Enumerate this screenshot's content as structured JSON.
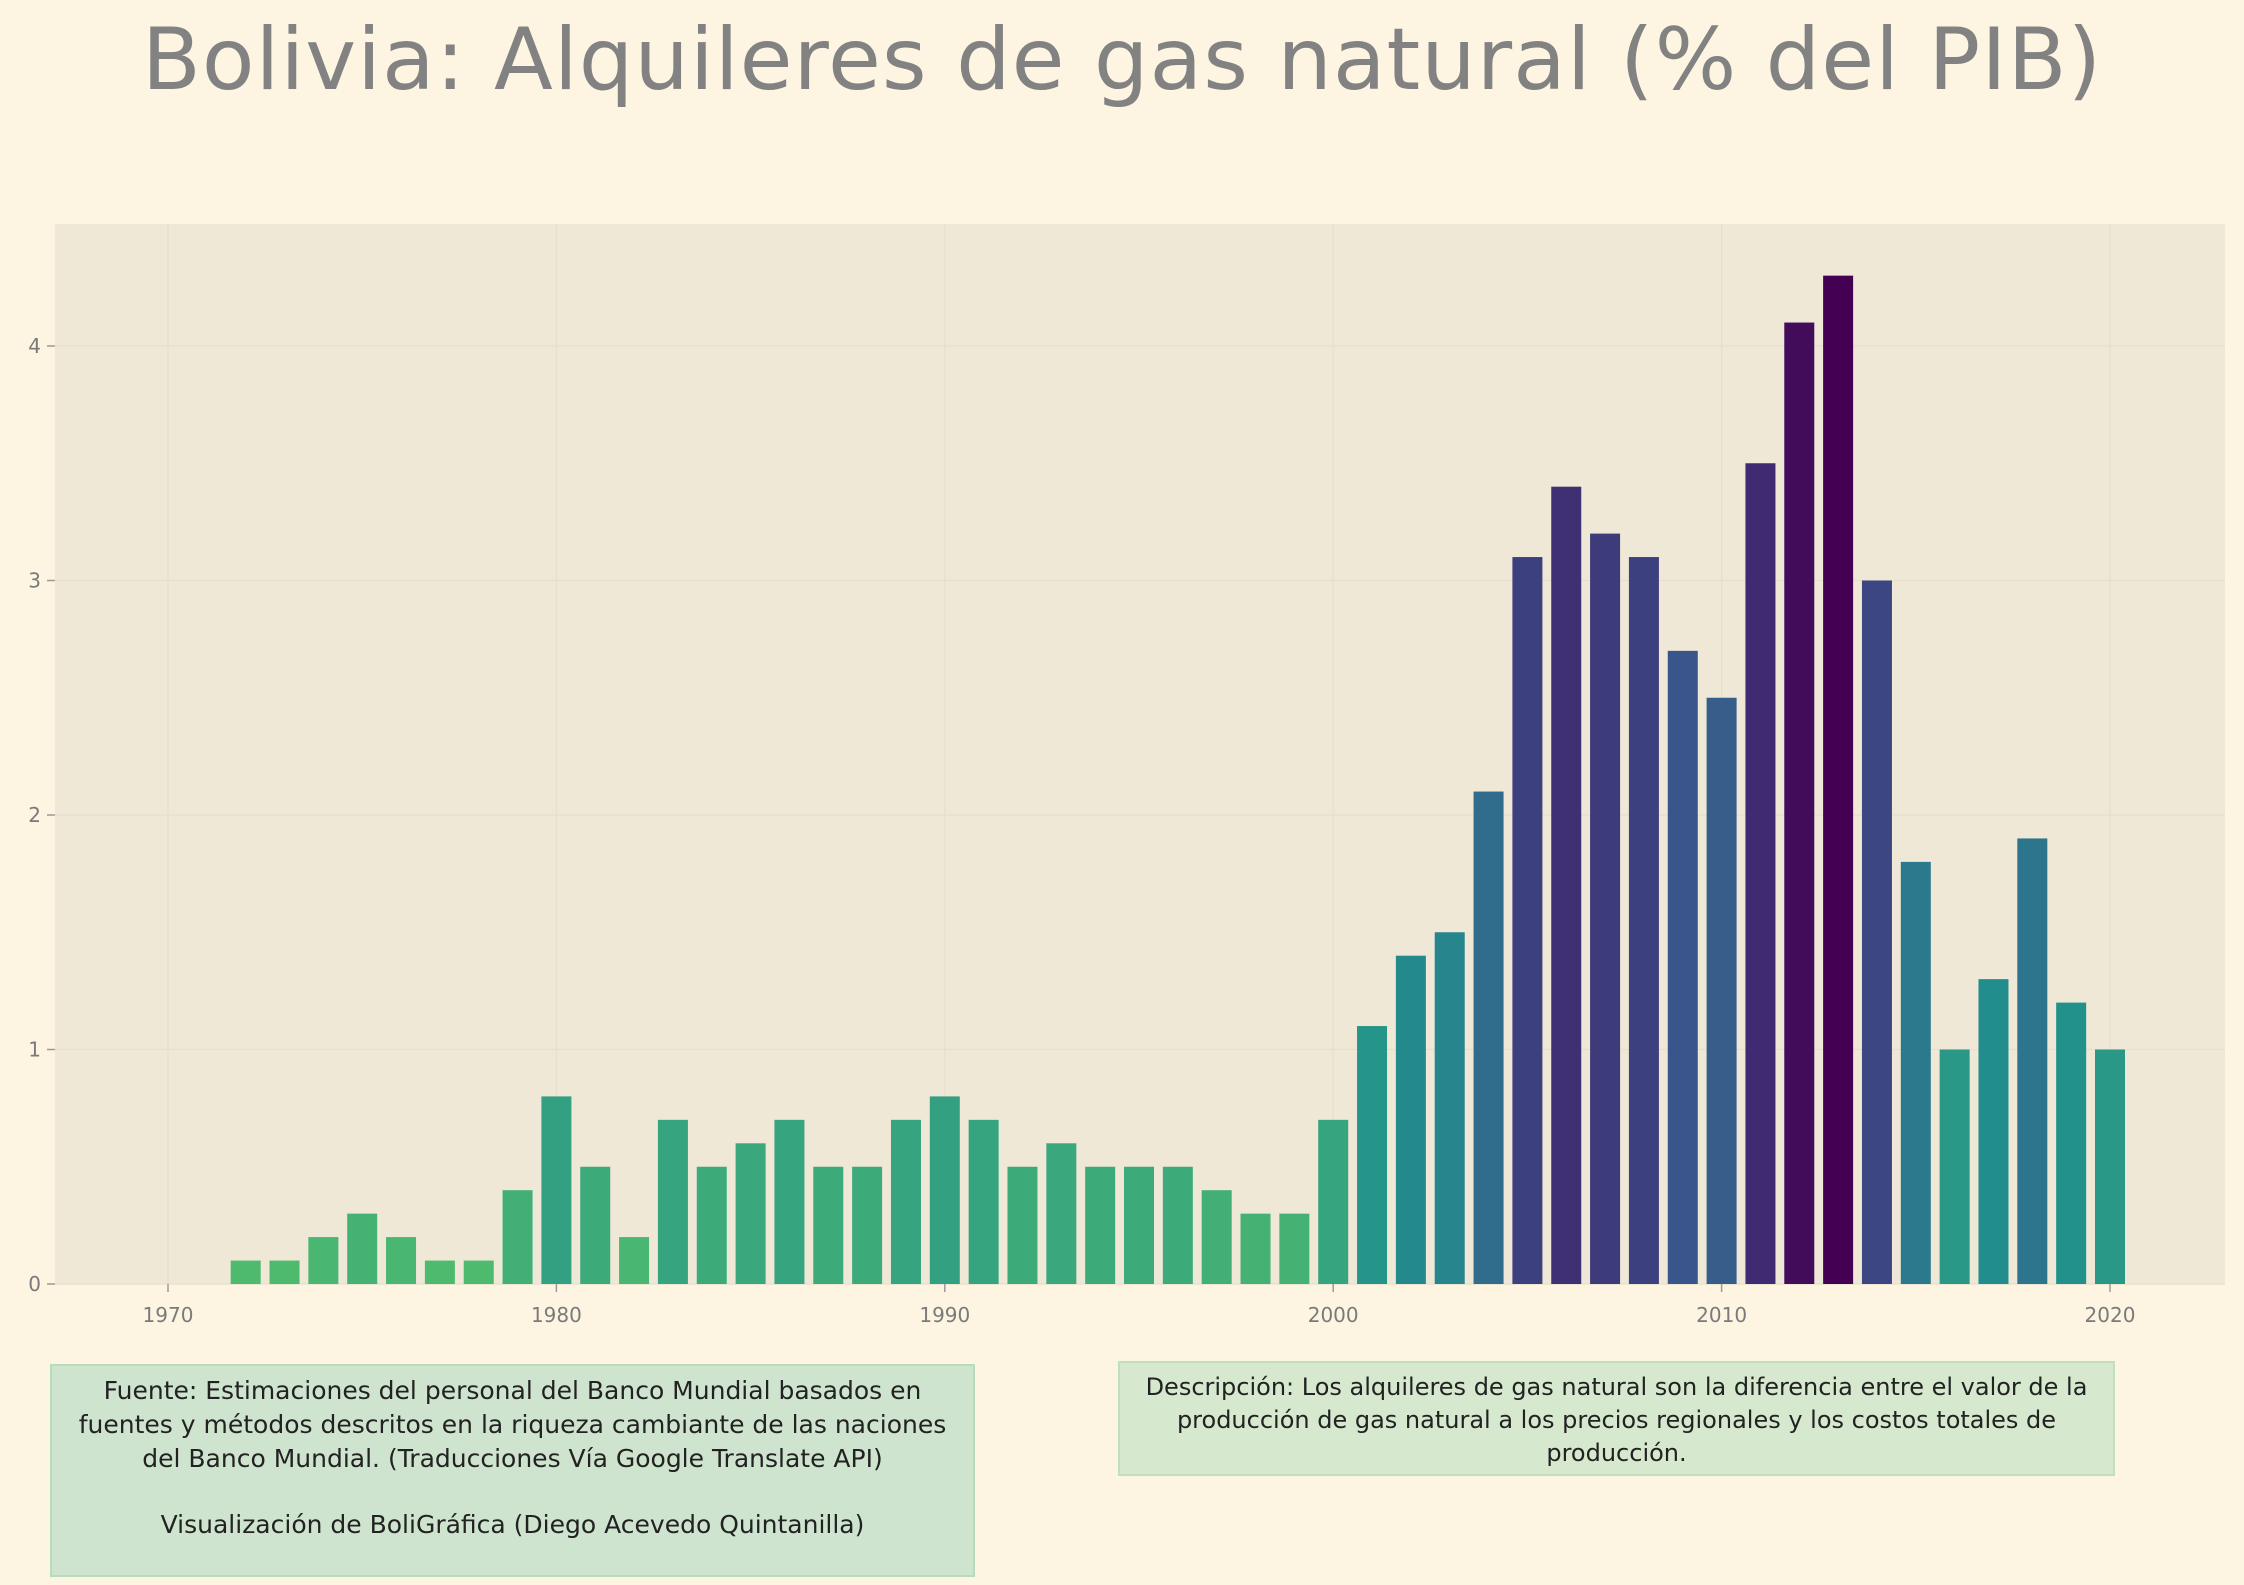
{
  "title": "Bolivia:  Alquileres de gas natural (% del PIB)",
  "source_text": "Fuente: Estimaciones del personal del Banco Mundial basados en fuentes y métodos descritos en la riqueza cambiante de las naciones del Banco Mundial. (Traducciones Vía Google Translate API)",
  "credit_text": "Visualización de BoliGráfica (Diego Acevedo Quintanilla)",
  "description_text": "Descripción: Los alquileres de gas natural son la diferencia entre el valor de la producción de gas natural a los precios regionales y los costos totales de producción.",
  "chart_data": {
    "type": "bar",
    "title": "Bolivia:  Alquileres de gas natural (% del PIB)",
    "xlabel": "",
    "ylabel": "",
    "x": [
      1970,
      1971,
      1972,
      1973,
      1974,
      1975,
      1976,
      1977,
      1978,
      1979,
      1980,
      1981,
      1982,
      1983,
      1984,
      1985,
      1986,
      1987,
      1988,
      1989,
      1990,
      1991,
      1992,
      1993,
      1994,
      1995,
      1996,
      1997,
      1998,
      1999,
      2000,
      2001,
      2002,
      2003,
      2004,
      2005,
      2006,
      2007,
      2008,
      2009,
      2010,
      2011,
      2012,
      2013,
      2014,
      2015,
      2016,
      2017,
      2018,
      2019,
      2020
    ],
    "values": [
      0,
      0,
      0.1,
      0.1,
      0.2,
      0.3,
      0.2,
      0.1,
      0.1,
      0.4,
      0.8,
      0.5,
      0.2,
      0.7,
      0.5,
      0.6,
      0.7,
      0.5,
      0.5,
      0.7,
      0.8,
      0.7,
      0.5,
      0.6,
      0.5,
      0.5,
      0.5,
      0.4,
      0.3,
      0.3,
      0.7,
      1.1,
      1.4,
      1.5,
      2.1,
      3.1,
      3.4,
      3.2,
      3.1,
      2.7,
      2.5,
      3.5,
      4.1,
      4.3,
      3.0,
      1.8,
      1.0,
      1.3,
      1.9,
      1.2,
      1.0
    ],
    "xlim": [
      1967.3,
      1922.8
    ],
    "ylim": [
      0,
      4.5
    ],
    "x_ticks": [
      1970,
      1980,
      1990,
      2000,
      2010,
      2020
    ],
    "y_ticks": [
      0,
      1,
      2,
      3,
      4
    ],
    "grid": true,
    "colormap": "viridis (higher value = darker)",
    "colors": {
      "background": "#fdf5e2",
      "plot_background": "#efe8d6",
      "title": "#828282",
      "tick_label": "#7a7a7a"
    }
  }
}
